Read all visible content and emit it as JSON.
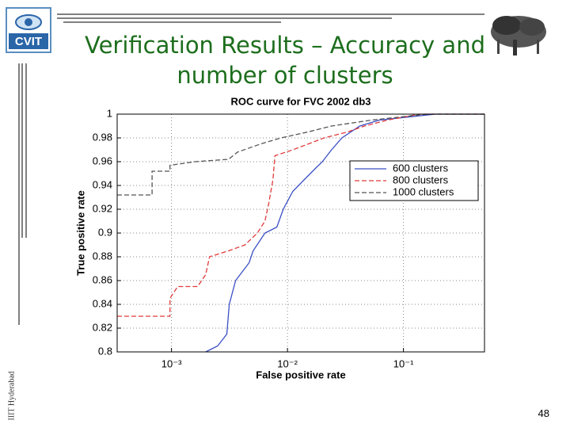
{
  "slide": {
    "title": "Verification Results – Accuracy and number of clusters",
    "logo": "CVIT",
    "footer": "IIIT Hyderabad",
    "page": "48"
  },
  "chart_data": {
    "type": "line",
    "title": "ROC curve for FVC 2002 db3",
    "x_label": "False positive rate",
    "y_label": "True positive rate",
    "xscale": "log",
    "grid": true,
    "legend": "right",
    "xlim": [
      0.00034,
      0.5
    ],
    "ylim": [
      0.8,
      1
    ],
    "xticks": [
      {
        "value": 0.001,
        "label": "10⁻³"
      },
      {
        "value": 0.01,
        "label": "10⁻²"
      },
      {
        "value": 0.1,
        "label": "10⁻¹"
      }
    ],
    "yticks": [
      0.8,
      0.82,
      0.84,
      0.86,
      0.88,
      0.9,
      0.92,
      0.94,
      0.96,
      0.98,
      1
    ],
    "series": [
      {
        "name": "600 clusters",
        "color": "#3a4fc4",
        "dash": "solid",
        "x": [
          0.00197,
          0.0025,
          0.003,
          0.00315,
          0.00357,
          0.00467,
          0.00505,
          0.0064,
          0.0081,
          0.0092,
          0.0111,
          0.014,
          0.0177,
          0.02,
          0.024,
          0.0295,
          0.042,
          0.062,
          0.188,
          0.5
        ],
        "values": [
          0.8,
          0.805,
          0.815,
          0.84,
          0.86,
          0.875,
          0.885,
          0.9,
          0.905,
          0.92,
          0.935,
          0.945,
          0.955,
          0.96,
          0.97,
          0.98,
          0.99,
          0.995,
          1,
          1
        ]
      },
      {
        "name": "800 clusters",
        "color": "#e03a3a",
        "dash": "dashed",
        "x": [
          0.00034,
          0.00097,
          0.00097,
          0.00113,
          0.00168,
          0.00197,
          0.00213,
          0.0031,
          0.0043,
          0.0055,
          0.0064,
          0.0069,
          0.0075,
          0.0078,
          0.0111,
          0.0152,
          0.0207,
          0.033,
          0.046,
          0.073,
          0.137,
          0.5
        ],
        "values": [
          0.83,
          0.83,
          0.845,
          0.855,
          0.855,
          0.865,
          0.88,
          0.885,
          0.89,
          0.9,
          0.91,
          0.925,
          0.945,
          0.965,
          0.97,
          0.975,
          0.98,
          0.985,
          0.99,
          0.995,
          1,
          1
        ]
      },
      {
        "name": "1000 clusters",
        "color": "#555555",
        "dash": "dashed",
        "x": [
          0.00034,
          0.00068,
          0.00068,
          0.00097,
          0.00097,
          0.0016,
          0.0031,
          0.0037,
          0.0059,
          0.0088,
          0.015,
          0.024,
          0.053,
          0.16,
          0.5
        ],
        "values": [
          0.932,
          0.932,
          0.952,
          0.952,
          0.957,
          0.96,
          0.962,
          0.968,
          0.975,
          0.98,
          0.985,
          0.99,
          0.995,
          1,
          1
        ]
      }
    ]
  }
}
